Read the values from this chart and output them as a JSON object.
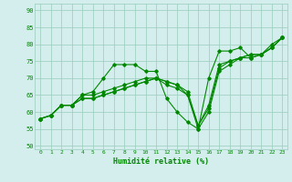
{
  "xlabel": "Humidité relative (%)",
  "xlim": [
    -0.5,
    23.5
  ],
  "ylim": [
    49,
    92
  ],
  "yticks": [
    50,
    55,
    60,
    65,
    70,
    75,
    80,
    85,
    90
  ],
  "xticks": [
    0,
    1,
    2,
    3,
    4,
    5,
    6,
    7,
    8,
    9,
    10,
    11,
    12,
    13,
    14,
    15,
    16,
    17,
    18,
    19,
    20,
    21,
    22,
    23
  ],
  "bg_color": "#d4eeee",
  "grid_color": "#99ccbb",
  "line_color": "#008800",
  "series": [
    [
      58,
      59,
      62,
      62,
      65,
      66,
      70,
      74,
      74,
      74,
      72,
      72,
      64,
      60,
      57,
      55,
      70,
      78,
      78,
      79,
      76,
      77,
      80,
      82
    ],
    [
      58,
      59,
      62,
      62,
      65,
      65,
      66,
      67,
      68,
      69,
      70,
      70,
      68,
      67,
      65,
      55,
      60,
      72,
      74,
      76,
      76,
      77,
      79,
      82
    ],
    [
      58,
      59,
      62,
      62,
      64,
      64,
      65,
      66,
      67,
      68,
      69,
      70,
      69,
      68,
      66,
      56,
      62,
      74,
      75,
      76,
      77,
      77,
      79,
      82
    ],
    [
      58,
      59,
      62,
      62,
      64,
      64,
      65,
      66,
      67,
      68,
      69,
      70,
      69,
      68,
      65,
      56,
      61,
      73,
      75,
      76,
      77,
      77,
      79,
      82
    ]
  ]
}
